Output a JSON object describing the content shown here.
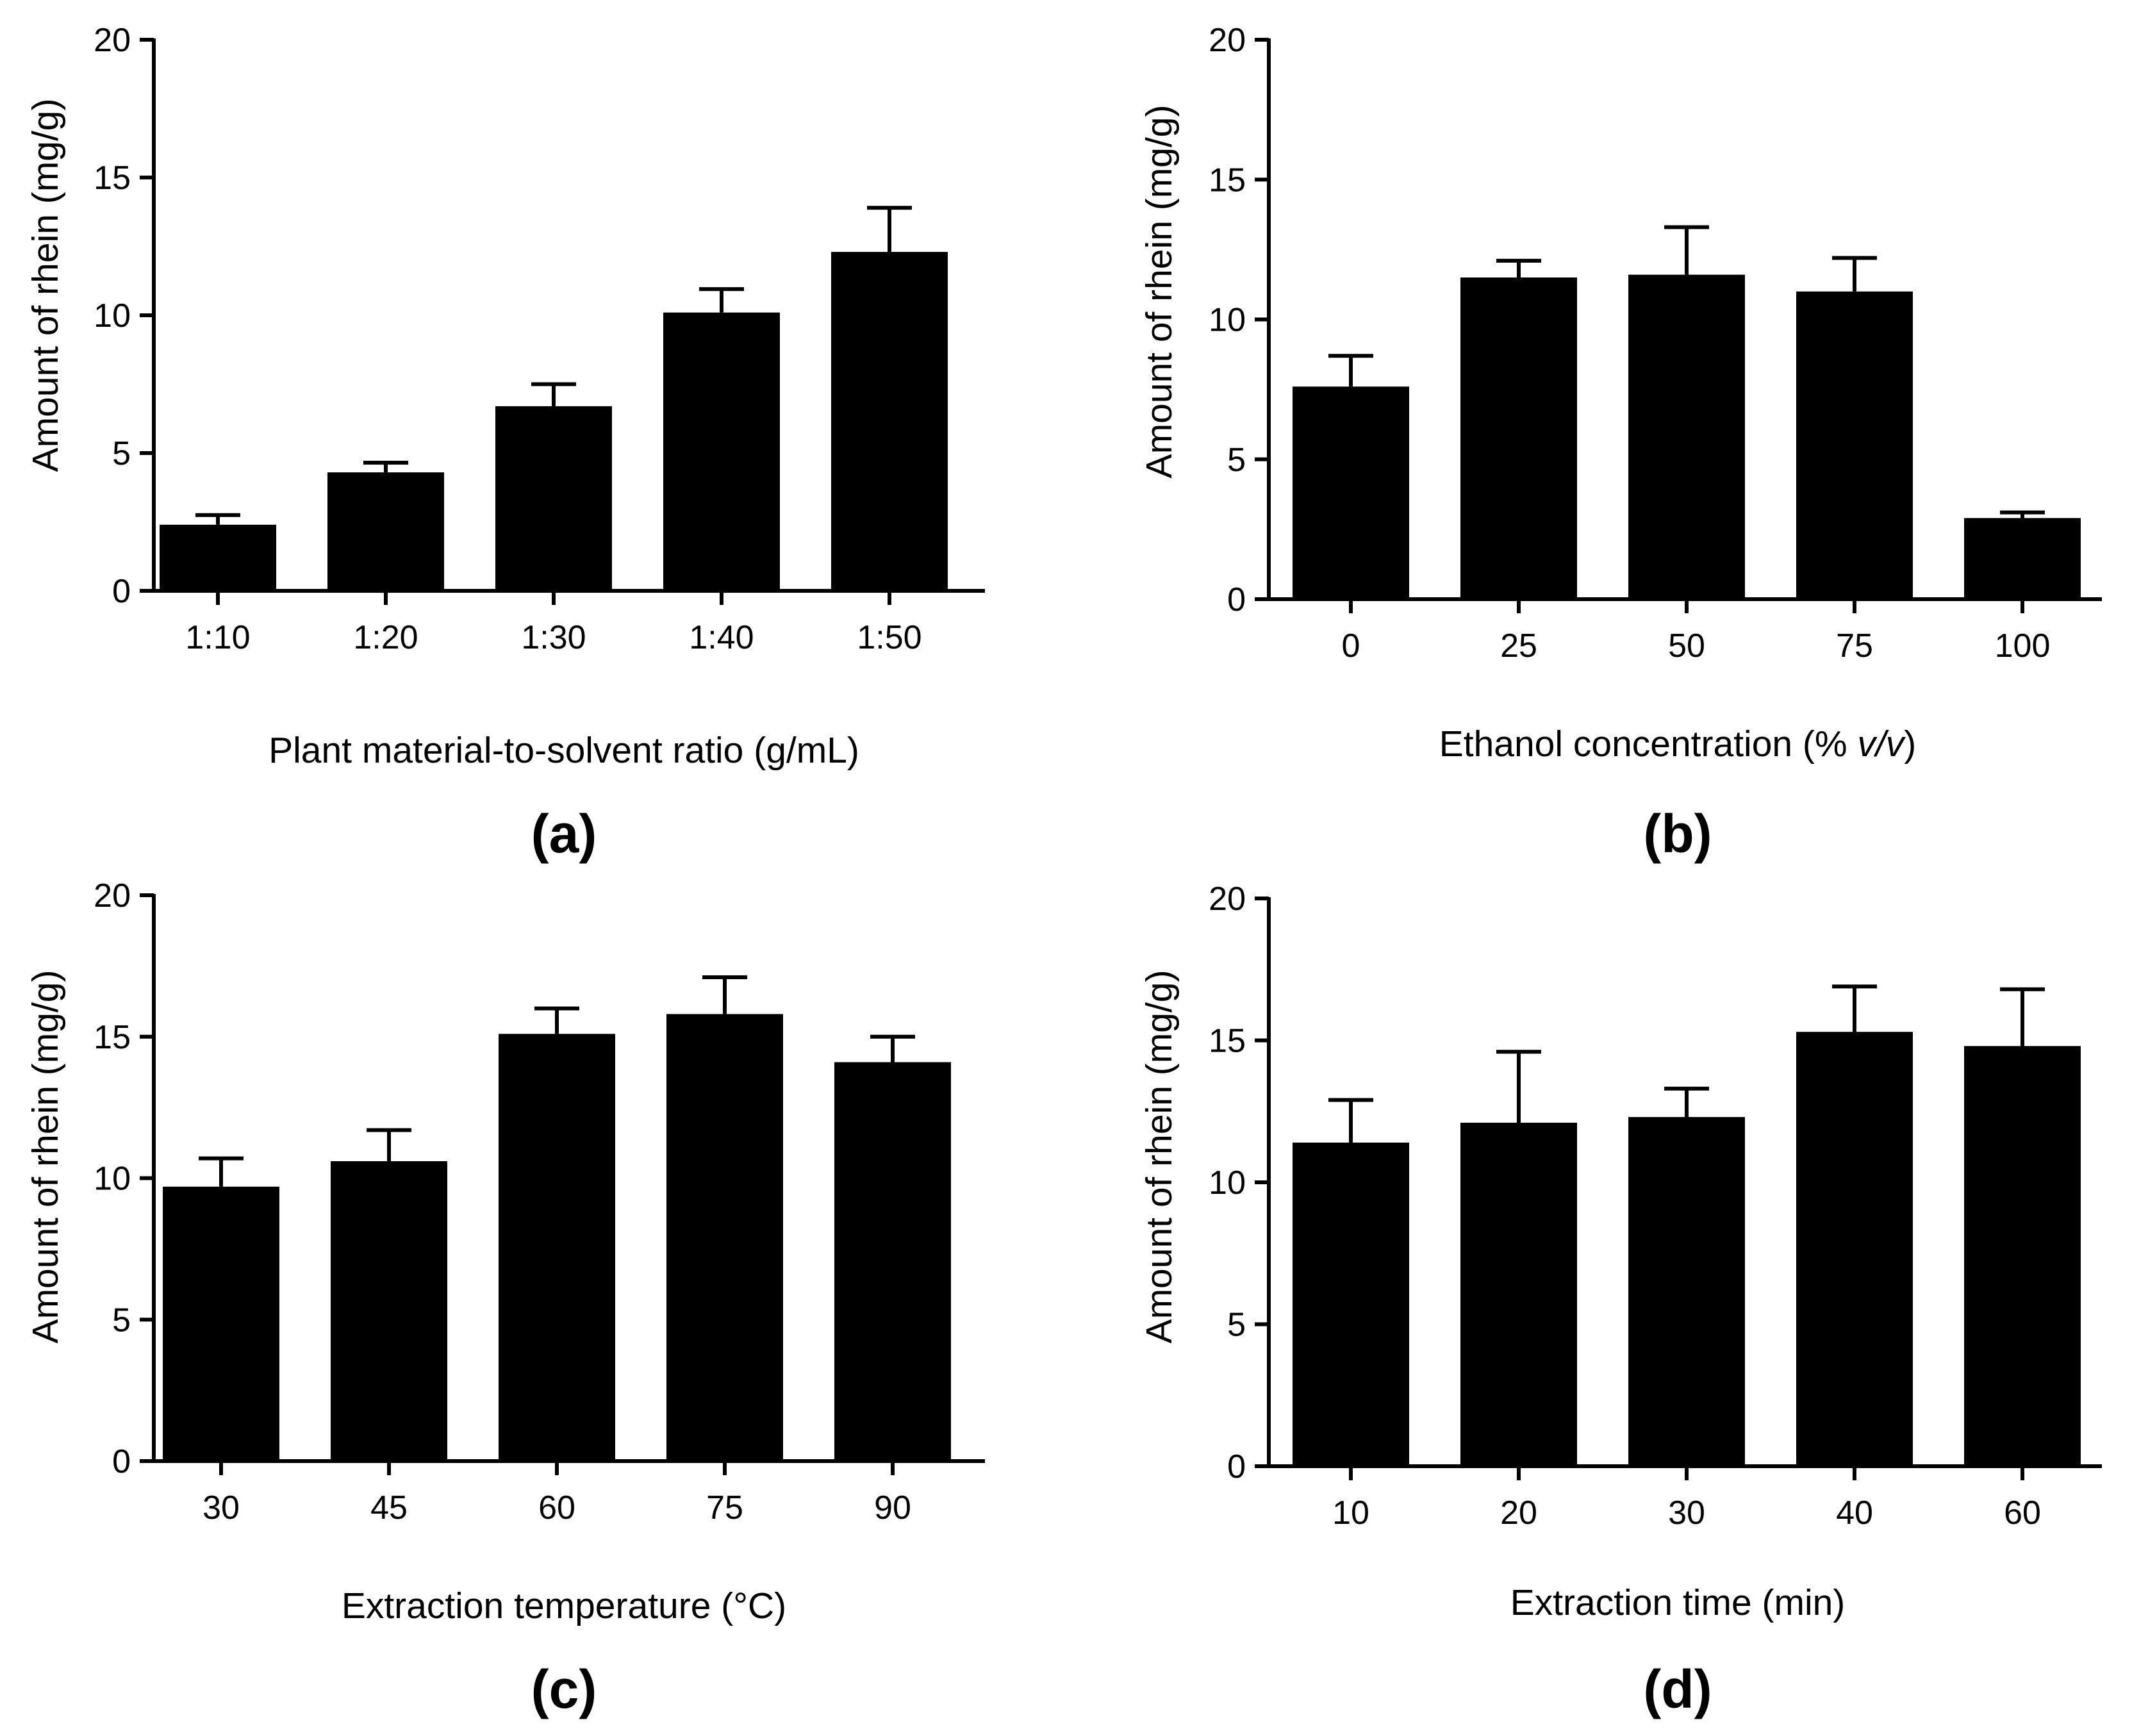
{
  "chart_data": [
    {
      "type": "bar",
      "panel_label": "(a)",
      "title": "",
      "xlabel": "Plant material-to-solvent ratio (g/mL)",
      "ylabel": "Amount of rhein (mg/g)",
      "categories": [
        "1:10",
        "1:20",
        "1:30",
        "1:40",
        "1:50"
      ],
      "values": [
        2.4,
        4.3,
        6.7,
        10.1,
        12.3
      ],
      "error": [
        0.35,
        0.35,
        0.8,
        0.85,
        1.6
      ],
      "ylim": [
        0,
        20
      ],
      "yticks": [
        0,
        5,
        10,
        15,
        20
      ],
      "grid": false
    },
    {
      "type": "bar",
      "panel_label": "(b)",
      "title": "",
      "xlabel": "Ethanol concentration (% v/v)",
      "xlabel_parts": [
        "Ethanol concentration (% ",
        "v/v",
        ")"
      ],
      "ylabel": "Amount of rhein (mg/g)",
      "categories": [
        "0",
        "25",
        "50",
        "75",
        "100"
      ],
      "values": [
        7.6,
        11.5,
        11.6,
        11.0,
        2.9
      ],
      "error": [
        1.1,
        0.6,
        1.7,
        1.2,
        0.2
      ],
      "ylim": [
        0,
        20
      ],
      "yticks": [
        0,
        5,
        10,
        15,
        20
      ],
      "grid": false
    },
    {
      "type": "bar",
      "panel_label": "(c)",
      "title": "",
      "xlabel": "Extraction temperature (°C)",
      "ylabel": "Amount of rhein (mg/g)",
      "categories": [
        "30",
        "45",
        "60",
        "75",
        "90"
      ],
      "values": [
        9.7,
        10.6,
        15.1,
        15.8,
        14.1
      ],
      "error": [
        1.0,
        1.1,
        0.9,
        1.3,
        0.9
      ],
      "ylim": [
        0,
        20
      ],
      "yticks": [
        0,
        5,
        10,
        15,
        20
      ],
      "grid": false
    },
    {
      "type": "bar",
      "panel_label": "(d)",
      "title": "",
      "xlabel": "Extraction time (min)",
      "ylabel": "Amount of rhein (mg/g)",
      "categories": [
        "10",
        "20",
        "30",
        "40",
        "60"
      ],
      "values": [
        11.4,
        12.1,
        12.3,
        15.3,
        14.8
      ],
      "error": [
        1.5,
        2.5,
        1.0,
        1.6,
        2.0
      ],
      "ylim": [
        0,
        20
      ],
      "yticks": [
        0,
        5,
        10,
        15,
        20
      ],
      "grid": false
    }
  ],
  "colors": {
    "bar": "#000000",
    "axis": "#000000",
    "background": "#ffffff"
  }
}
